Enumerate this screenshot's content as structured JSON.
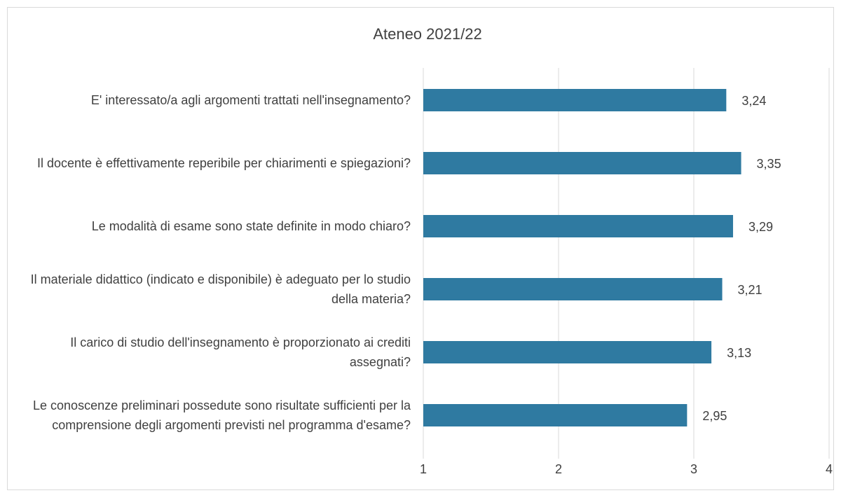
{
  "chart_data": {
    "type": "bar",
    "orientation": "horizontal",
    "title": "Ateneo 2021/22",
    "categories": [
      "E' interessato/a agli argomenti trattati nell'insegnamento?",
      "Il docente è effettivamente reperibile per chiarimenti e spiegazioni?",
      "Le modalità di esame sono state definite in modo chiaro?",
      "Il materiale didattico (indicato e disponibile) è adeguato per lo studio della materia?",
      "Il carico di studio dell'insegnamento è proporzionato ai crediti assegnati?",
      "Le conoscenze preliminari possedute sono risultate sufficienti per la comprensione degli argomenti previsti nel programma d'esame?"
    ],
    "values": [
      3.24,
      3.35,
      3.29,
      3.21,
      3.13,
      2.95
    ],
    "value_labels": [
      "3,24",
      "3,35",
      "3,29",
      "3,21",
      "3,13",
      "2,95"
    ],
    "color": "#2f7aa1",
    "xlim": [
      1,
      4
    ],
    "xticks": [
      1,
      2,
      3,
      4
    ],
    "grid": true
  }
}
